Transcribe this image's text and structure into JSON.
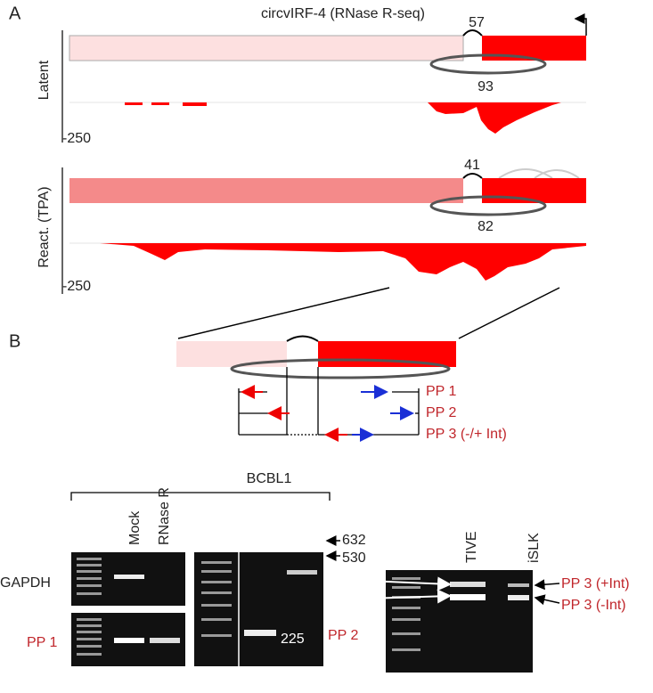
{
  "panel_a": {
    "label": "A",
    "title": "circvIRF-4 (RNase R-seq)",
    "tracks": [
      {
        "name": "Latent",
        "junction_top": "57",
        "junction_bottom": "93",
        "scale": "-250"
      },
      {
        "name": "React. (TPA)",
        "junction_top": "41",
        "junction_bottom": "82",
        "scale": "-250"
      }
    ]
  },
  "panel_b": {
    "label": "B",
    "primers": [
      "PP 1",
      "PP 2",
      "PP 3 (-/+ Int)"
    ],
    "cell_line": "BCBL1",
    "lanes": [
      "Mock",
      "RNase R"
    ],
    "gel_rows": [
      "GAPDH",
      "PP 1"
    ],
    "gel2_label": "PP 2",
    "gel2_sizes": [
      "632",
      "530",
      "225"
    ],
    "gel3_lanes": [
      "TIVE",
      "iSLK"
    ],
    "gel3_bands": [
      "PP 3 (+Int)",
      "PP 3 (-Int)"
    ]
  }
}
